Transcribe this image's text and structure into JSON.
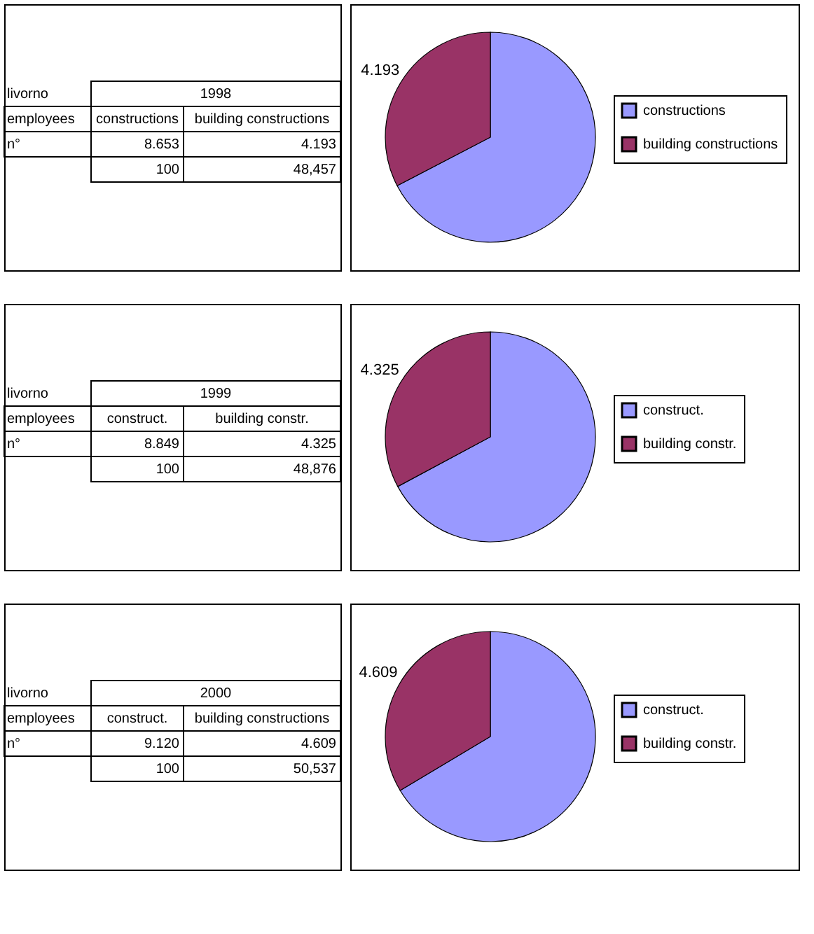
{
  "chart_data": [
    {
      "type": "pie",
      "categories": [
        "constructions",
        "building constructions"
      ],
      "values": [
        8.653,
        4.193
      ],
      "colors": [
        "#9999ff",
        "#993366"
      ],
      "value_labels": [
        null,
        "4.193"
      ],
      "legend": "right",
      "annotations": [
        "livorno",
        "1998",
        "employees",
        "constructions",
        "building constructions",
        "n°",
        "8.653",
        "4.193",
        "100",
        "48,457"
      ]
    },
    {
      "type": "pie",
      "categories": [
        "construct.",
        "building constr."
      ],
      "values": [
        8.849,
        4.325
      ],
      "colors": [
        "#9999ff",
        "#993366"
      ],
      "value_labels": [
        null,
        "4.325"
      ],
      "legend": "right",
      "annotations": [
        "livorno",
        "1999",
        "employees",
        "construct.",
        "building constr.",
        "n°",
        "8.849",
        "4.325",
        "100",
        "48,876"
      ]
    },
    {
      "type": "pie",
      "categories": [
        "construct.",
        "building constr."
      ],
      "values": [
        9.12,
        4.609
      ],
      "colors": [
        "#9999ff",
        "#993366"
      ],
      "value_labels": [
        null,
        "4.609"
      ],
      "legend": "right",
      "annotations": [
        "livorno",
        "2000",
        "employees",
        "construct.",
        "building constructions",
        "n°",
        "9.120",
        "4.609",
        "100",
        "50,537"
      ]
    }
  ]
}
